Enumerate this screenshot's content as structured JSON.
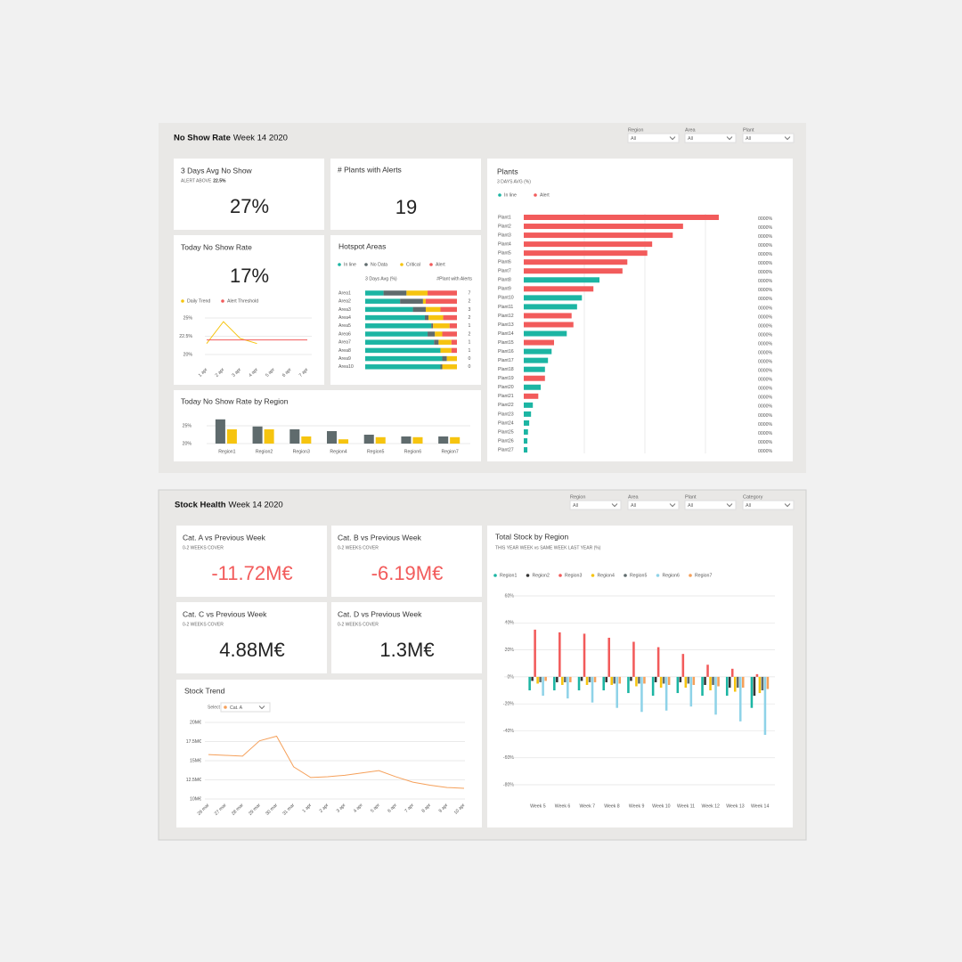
{
  "no_show": {
    "title": "No Show Rate",
    "subtitle": "Week 14 2020",
    "filters": [
      {
        "label": "Region",
        "value": "All"
      },
      {
        "label": "Area",
        "value": "All"
      },
      {
        "label": "Plant",
        "value": "All"
      }
    ],
    "avg_card": {
      "title": "3 Days Avg No Show",
      "note": "ALERT ABOVE",
      "note_value": "22.5%",
      "value": "27%"
    },
    "alerts_card": {
      "title": "# Plants with Alerts",
      "value": "19"
    },
    "today_card": {
      "title": "Today No Show Rate",
      "value": "17%",
      "chart": {
        "type": "line",
        "categories": [
          "1 apr",
          "2 apr",
          "3 apr",
          "4 apr",
          "5 apr",
          "6 apr",
          "7 apr"
        ],
        "series": [
          {
            "name": "Daily Trend",
            "color": "#f6c40f",
            "values": [
              21.5,
              24.5,
              22.2,
              21.5,
              null,
              null,
              null
            ]
          },
          {
            "name": "Alert Threshold",
            "color": "#f25b5b",
            "values": [
              22,
              22,
              22,
              22,
              22,
              22,
              22
            ]
          }
        ],
        "ylim": [
          19.5,
          25.5
        ],
        "yticks": [
          {
            "value": 25,
            "label": "25%"
          },
          {
            "value": 22.5,
            "label": "22.5%"
          },
          {
            "value": 20,
            "label": "20%"
          }
        ],
        "grid": true
      }
    },
    "hotspot": {
      "title": "Hotspot Areas",
      "chart": {
        "type": "stacked_hbar",
        "axis_label": "3 Days Avg (%)",
        "count_label": "#Plant with Alerts",
        "categories": [
          "Area1",
          "Area2",
          "Area3",
          "Area4",
          "Area5",
          "Area6",
          "Area7",
          "Area8",
          "Area9",
          "Area10"
        ],
        "series": [
          {
            "name": "In line",
            "color": "#1cb5a3",
            "values": [
              20,
              38,
              52,
              65,
              72,
              68,
              75,
              82,
              84,
              82
            ]
          },
          {
            "name": "No Data",
            "color": "#5f6b6d",
            "values": [
              25,
              25,
              14,
              4,
              2,
              8,
              5,
              0,
              5,
              2
            ]
          },
          {
            "name": "Critical",
            "color": "#f6c40f",
            "values": [
              23,
              3,
              16,
              16,
              18,
              8,
              14,
              12,
              11,
              16
            ]
          },
          {
            "name": "Alert",
            "color": "#f25b5b",
            "values": [
              32,
              34,
              18,
              15,
              8,
              16,
              6,
              6,
              0,
              0
            ]
          }
        ],
        "counts": [
          7,
          2,
          3,
          2,
          1,
          2,
          1,
          1,
          0,
          0
        ],
        "xlim": [
          0,
          100
        ]
      }
    },
    "by_region": {
      "title": "Today No Show Rate by Region",
      "chart": {
        "type": "grouped_bar",
        "categories": [
          "Region1",
          "Region2",
          "Region3",
          "Region4",
          "Region5",
          "Region6",
          "Region7"
        ],
        "series": [
          {
            "color": "#5f6b6d",
            "values": [
              26.8,
              24.8,
              24,
              23.5,
              22.5,
              22,
              22
            ]
          },
          {
            "color": "#f6c40f",
            "values": [
              24,
              24,
              22,
              21.2,
              21.8,
              21.8,
              21.8
            ]
          }
        ],
        "ylim": [
          20,
          28
        ],
        "yticks": [
          {
            "value": 25,
            "label": "25%"
          },
          {
            "value": 20,
            "label": "20%"
          }
        ],
        "grid": true
      }
    },
    "plants": {
      "title": "Plants",
      "chart": {
        "type": "hbar",
        "subtitle": "3 DAYS AVG (%)",
        "legend": [
          {
            "name": "In line",
            "color": "#1cb5a3"
          },
          {
            "name": "Alert",
            "color": "#f25b5b"
          }
        ],
        "categories": [
          "Plant1",
          "Plant2",
          "Plant3",
          "Plant4",
          "Plant5",
          "Plant6",
          "Plant7",
          "Plant8",
          "Plant9",
          "Plant10",
          "Plant11",
          "Plant12",
          "Plant13",
          "Plant14",
          "Plant15",
          "Plant16",
          "Plant17",
          "Plant18",
          "Plant19",
          "Plant20",
          "Plant21",
          "Plant22",
          "Plant23",
          "Plant24",
          "Plant25",
          "Plant26",
          "Plant27"
        ],
        "values": [
          32.2,
          26.3,
          24.6,
          21.2,
          20.4,
          17.1,
          16.3,
          12.5,
          11.5,
          9.6,
          8.8,
          7.9,
          8.2,
          7.1,
          5,
          4.6,
          4,
          3.5,
          3.5,
          2.8,
          2.4,
          1.5,
          1.2,
          0.9,
          0.7,
          0.6,
          0.6
        ],
        "colors": [
          "#f25b5b",
          "#f25b5b",
          "#f25b5b",
          "#f25b5b",
          "#f25b5b",
          "#f25b5b",
          "#f25b5b",
          "#1cb5a3",
          "#f25b5b",
          "#1cb5a3",
          "#1cb5a3",
          "#f25b5b",
          "#f25b5b",
          "#1cb5a3",
          "#f25b5b",
          "#1cb5a3",
          "#1cb5a3",
          "#1cb5a3",
          "#f25b5b",
          "#1cb5a3",
          "#f25b5b",
          "#1cb5a3",
          "#1cb5a3",
          "#1cb5a3",
          "#1cb5a3",
          "#1cb5a3",
          "#1cb5a3"
        ],
        "percent_labels": [
          "0000%",
          "0000%",
          "0000%",
          "0000%",
          "0000%",
          "0000%",
          "0000%",
          "0000%",
          "0000%",
          "0000%",
          "0000%",
          "0000%",
          "0000%",
          "0000%",
          "0000%",
          "0000%",
          "0000%",
          "0000%",
          "0000%",
          "0000%",
          "0000%",
          "0000%",
          "0000%",
          "0000%",
          "0000%",
          "0000%",
          "0000%"
        ],
        "xlim": [
          0,
          37
        ],
        "xticks": [
          10,
          20,
          30
        ],
        "grid": true
      }
    }
  },
  "stock_health": {
    "title": "Stock Health",
    "subtitle": "Week 14 2020",
    "filters": [
      {
        "label": "Region",
        "value": "All"
      },
      {
        "label": "Area",
        "value": "All"
      },
      {
        "label": "Plant",
        "value": "All"
      },
      {
        "label": "Category",
        "value": "All"
      }
    ],
    "cards": [
      {
        "title": "Cat. A vs Previous Week",
        "note": "0-2 WEEKS COVER",
        "value": "-11.72M€",
        "color": "#f25b5b"
      },
      {
        "title": "Cat. B vs Previous Week",
        "note": "0-2 WEEKS COVER",
        "value": "-6.19M€",
        "color": "#f25b5b"
      },
      {
        "title": "Cat. C vs Previous Week",
        "note": "0-2 WEEKS COVER",
        "value": "4.88M€",
        "color": "#222222"
      },
      {
        "title": "Cat. D vs Previous Week",
        "note": "0-2 WEEKS COVER",
        "value": "1.3M€",
        "color": "#222222"
      }
    ],
    "trend": {
      "title": "Stock Trend",
      "select_label": "Select Category:",
      "selected": "Cat. A",
      "chart": {
        "type": "line",
        "categories": [
          "26 mar",
          "27 mar",
          "28 mar",
          "29 mar",
          "30 mar",
          "31 mar",
          "1 apr",
          "2 apr",
          "3 apr",
          "4 apr",
          "5 apr",
          "6 apr",
          "7 apr",
          "8 apr",
          "9 apr",
          "10 apr"
        ],
        "series": [
          {
            "color": "#f5a05a",
            "values": [
              15.8,
              15.7,
              15.6,
              17.6,
              18.2,
              14.2,
              12.8,
              12.9,
              13.1,
              13.4,
              13.7,
              12.9,
              12.2,
              11.8,
              11.5,
              11.4
            ]
          }
        ],
        "ylim": [
          10,
          20
        ],
        "yticks": [
          {
            "value": 20,
            "label": "20M€"
          },
          {
            "value": 17.5,
            "label": "17.5M€"
          },
          {
            "value": 15,
            "label": "15M€"
          },
          {
            "value": 12.5,
            "label": "12.5M€"
          },
          {
            "value": 10,
            "label": "10M€"
          }
        ],
        "grid": true
      }
    },
    "total": {
      "title": "Total Stock by Region",
      "chart": {
        "type": "grouped_bar",
        "subtitle": "THIS YEAR WEEK vs SAME WEEK LAST YEAR  (%)",
        "categories": [
          "Week 5",
          "Week 6",
          "Week 7",
          "Week 8",
          "Week 9",
          "Week 10",
          "Week 11",
          "Week 12",
          "Week 13",
          "Week 14"
        ],
        "series": [
          {
            "name": "Region1",
            "color": "#1cb5a3",
            "values": [
              -10,
              -10,
              -10,
              -10,
              -12,
              -14,
              -12,
              -14,
              -14,
              -23
            ]
          },
          {
            "name": "Region2",
            "color": "#333333",
            "values": [
              -3,
              -4,
              -3,
              -4,
              -3,
              -4,
              -4,
              -6,
              -8,
              -14
            ]
          },
          {
            "name": "Region3",
            "color": "#f25b5b",
            "values": [
              35,
              33,
              32,
              29,
              26,
              22,
              17,
              9,
              6,
              2
            ]
          },
          {
            "name": "Region4",
            "color": "#f6c40f",
            "values": [
              -5,
              -6,
              -6,
              -6,
              -7,
              -8,
              -8,
              -10,
              -11,
              -12
            ]
          },
          {
            "name": "Region5",
            "color": "#5f6b6d",
            "values": [
              -4,
              -4,
              -4,
              -5,
              -5,
              -5,
              -5,
              -6,
              -8,
              -10
            ]
          },
          {
            "name": "Region6",
            "color": "#8fd3e8",
            "values": [
              -14,
              -16,
              -19,
              -23,
              -26,
              -25,
              -22,
              -28,
              -33,
              -43
            ]
          },
          {
            "name": "Region7",
            "color": "#f5a05a",
            "values": [
              -3,
              -4,
              -4,
              -5,
              -5,
              -6,
              -6,
              -7,
              -8,
              -9
            ]
          }
        ],
        "ylim": [
          -85,
          62
        ],
        "yticks": [
          {
            "value": 60,
            "label": "60%"
          },
          {
            "value": 40,
            "label": "40%"
          },
          {
            "value": 20,
            "label": "20%"
          },
          {
            "value": 0,
            "label": "0%"
          },
          {
            "value": -20,
            "label": "-20%"
          },
          {
            "value": -40,
            "label": "-40%"
          },
          {
            "value": -60,
            "label": "-60%"
          },
          {
            "value": -80,
            "label": "-80%"
          }
        ],
        "grid": true
      }
    }
  }
}
